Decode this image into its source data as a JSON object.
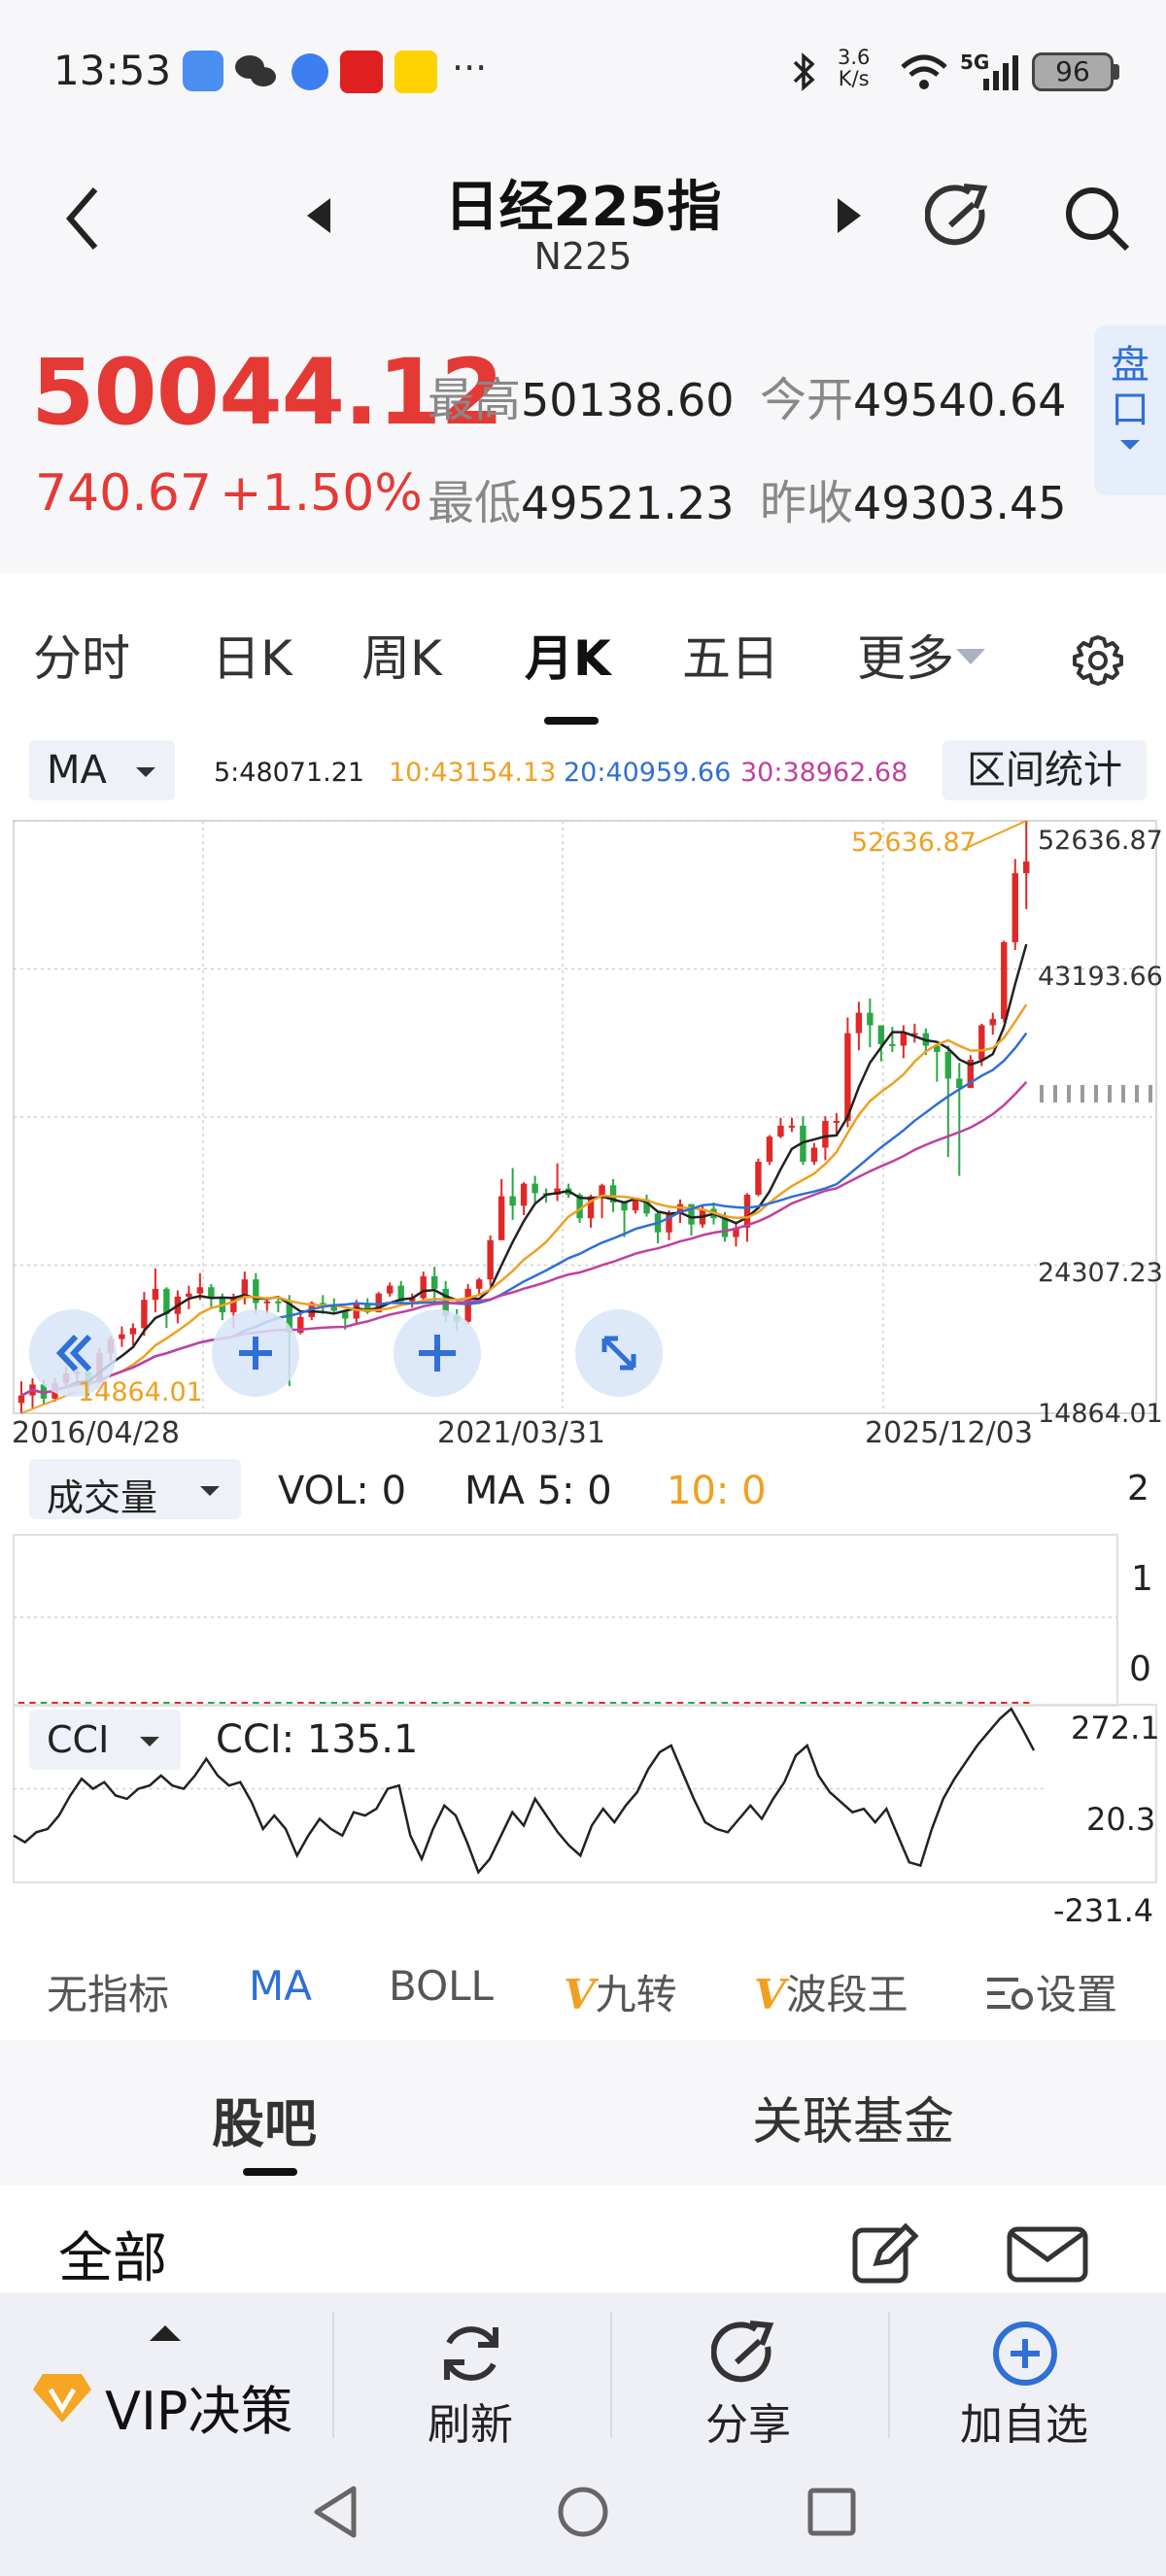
{
  "status_bar": {
    "time": "13:53",
    "app_icons": [
      "message-icon",
      "wechat-icon",
      "browser-icon",
      "wanlian-securities-icon",
      "meituan-icon"
    ],
    "more": "···",
    "net_speed_top": "3.6",
    "net_speed_bottom": "K/s",
    "network": "5G",
    "battery": "96"
  },
  "header": {
    "title": "日经225指",
    "subtitle": "N225"
  },
  "quote": {
    "price": "50044.12",
    "change": "740.67",
    "change_pct": "+1.50%",
    "high_label": "最高",
    "high": "50138.60",
    "open_label": "今开",
    "open": "49540.64",
    "low_label": "最低",
    "low": "49521.23",
    "prev_label": "昨收",
    "prev": "49303.45",
    "pankou_label": "盘口",
    "up_color": "#e53935"
  },
  "tabs": {
    "items": [
      "分时",
      "日K",
      "周K",
      "月K",
      "五日",
      "更多"
    ],
    "active": "月K"
  },
  "ma_bar": {
    "selector": "MA",
    "ma5": "5:48071.21",
    "ma10": "10:43154.13",
    "ma20": "20:40959.66",
    "ma30": "30:38962.68",
    "range_stats": "区间统计",
    "colors": {
      "ma5": "#222222",
      "ma10": "#f0a020",
      "ma20": "#2f6fd6",
      "ma30": "#c040a0"
    }
  },
  "chart_data": {
    "type": "candlestick",
    "y_ticks": [
      "52636.87",
      "43193.66",
      "24307.23",
      "14864.01"
    ],
    "ylim": [
      14864.01,
      52636.87
    ],
    "max_label": "52636.87",
    "min_label": "14864.01",
    "x_ticks": [
      "2016/04/28",
      "2021/03/31",
      "2025/12/03"
    ],
    "closes": [
      16000,
      16700,
      15800,
      16800,
      17400,
      17500,
      16900,
      18700,
      19600,
      19900,
      20300,
      22100,
      22800,
      21200,
      22300,
      22500,
      22900,
      22200,
      21300,
      22200,
      23400,
      21900,
      22000,
      21900,
      20000,
      21000,
      21900,
      21800,
      21400,
      20900,
      21800,
      21300,
      22500,
      23000,
      22000,
      22200,
      23600,
      22800,
      21100,
      20700,
      22800,
      23400,
      25900,
      28700,
      28100,
      29500,
      28900,
      28800,
      29200,
      28800,
      27300,
      28700,
      29400,
      28300,
      27800,
      28500,
      27600,
      26400,
      27600,
      28200,
      26900,
      27900,
      27300,
      26100,
      26700,
      28800,
      30900,
      32500,
      33200,
      33200,
      30900,
      31800,
      33500,
      33500,
      39100,
      40400,
      39600,
      38400,
      38300,
      39100,
      39100,
      38300,
      37900,
      36200,
      35600,
      37400,
      39600,
      40000,
      44900,
      49300,
      50044
    ],
    "highs": [
      16900,
      17100,
      17000,
      17100,
      17800,
      17800,
      17500,
      19000,
      19800,
      20400,
      20600,
      22600,
      24100,
      22900,
      22700,
      23000,
      23800,
      23100,
      22500,
      22500,
      23900,
      23800,
      22200,
      22300,
      22400,
      21300,
      22000,
      22400,
      22200,
      21400,
      22100,
      22200,
      22600,
      23200,
      23300,
      22500,
      23900,
      24200,
      23300,
      21500,
      23100,
      23500,
      26200,
      29800,
      30500,
      29600,
      30000,
      29200,
      30800,
      29500,
      28900,
      28800,
      29500,
      29800,
      28400,
      28600,
      28800,
      27700,
      27800,
      28500,
      28200,
      28100,
      28300,
      27700,
      27100,
      28900,
      31100,
      32600,
      33700,
      33700,
      33800,
      32100,
      33800,
      34000,
      40100,
      41100,
      41300,
      39600,
      39500,
      39600,
      39700,
      39400,
      38400,
      38300,
      37200,
      37700,
      39700,
      40400,
      45000,
      50200,
      52637
    ],
    "lows": [
      14864,
      15200,
      15400,
      15600,
      16600,
      16800,
      16000,
      16800,
      18200,
      19100,
      19200,
      19800,
      21300,
      20300,
      20600,
      21500,
      22100,
      21600,
      20800,
      20300,
      21800,
      21200,
      21200,
      21300,
      16600,
      19900,
      20800,
      21200,
      21200,
      20200,
      20600,
      21200,
      21300,
      22300,
      21800,
      21600,
      21900,
      22000,
      20700,
      20100,
      20500,
      22400,
      23000,
      25900,
      27200,
      27500,
      28300,
      28300,
      28400,
      28600,
      27000,
      26700,
      27300,
      27700,
      26100,
      27600,
      27400,
      25700,
      25900,
      27000,
      26200,
      26700,
      26900,
      25800,
      25500,
      25800,
      28700,
      30700,
      32400,
      32800,
      30700,
      30700,
      31000,
      32600,
      33100,
      38000,
      38200,
      37300,
      37900,
      37500,
      38500,
      37700,
      36000,
      31200,
      30000,
      35600,
      37000,
      39000,
      39800,
      44400,
      47000
    ]
  },
  "volume": {
    "selector": "成交量",
    "vol": "VOL: 0",
    "ma5": "MA 5: 0",
    "ma10": "10: 0",
    "y_ticks": [
      "2",
      "1",
      "0"
    ]
  },
  "cci": {
    "selector": "CCI",
    "value": "CCI: 135.1",
    "y_ticks": [
      "272.1",
      "20.3",
      "-231.4"
    ],
    "values": [
      -120,
      -140,
      -110,
      -100,
      -60,
      0,
      50,
      20,
      40,
      0,
      -10,
      20,
      30,
      60,
      30,
      20,
      60,
      110,
      60,
      30,
      40,
      -20,
      -100,
      -60,
      -100,
      -180,
      -120,
      -70,
      -100,
      -120,
      -50,
      -60,
      -40,
      20,
      30,
      -120,
      -190,
      -100,
      -30,
      -60,
      -140,
      -230,
      -190,
      -120,
      -50,
      -90,
      -10,
      -60,
      -110,
      -150,
      -180,
      -90,
      -40,
      -80,
      -30,
      10,
      80,
      130,
      150,
      70,
      -10,
      -80,
      -100,
      -110,
      -70,
      -30,
      -70,
      -10,
      40,
      120,
      150,
      60,
      10,
      -20,
      -50,
      -40,
      -80,
      -40,
      -120,
      -200,
      -210,
      -100,
      -10,
      50,
      100,
      150,
      190,
      230,
      260,
      200,
      135
    ]
  },
  "chart_overlay_buttons": [
    "double-left-icon",
    "zoom-in-icon",
    "crosshair-icon",
    "expand-icon"
  ],
  "indicators": {
    "items": [
      "无指标",
      "MA",
      "BOLL",
      "九转",
      "波段王",
      "设置"
    ],
    "active": "MA",
    "v_badge": "V"
  },
  "community": {
    "tabs": [
      "股吧",
      "关联基金"
    ],
    "active": "股吧",
    "filter": "全部"
  },
  "bottom_bar": {
    "vip": "VIP决策",
    "refresh": "刷新",
    "share": "分享",
    "add": "加自选"
  }
}
